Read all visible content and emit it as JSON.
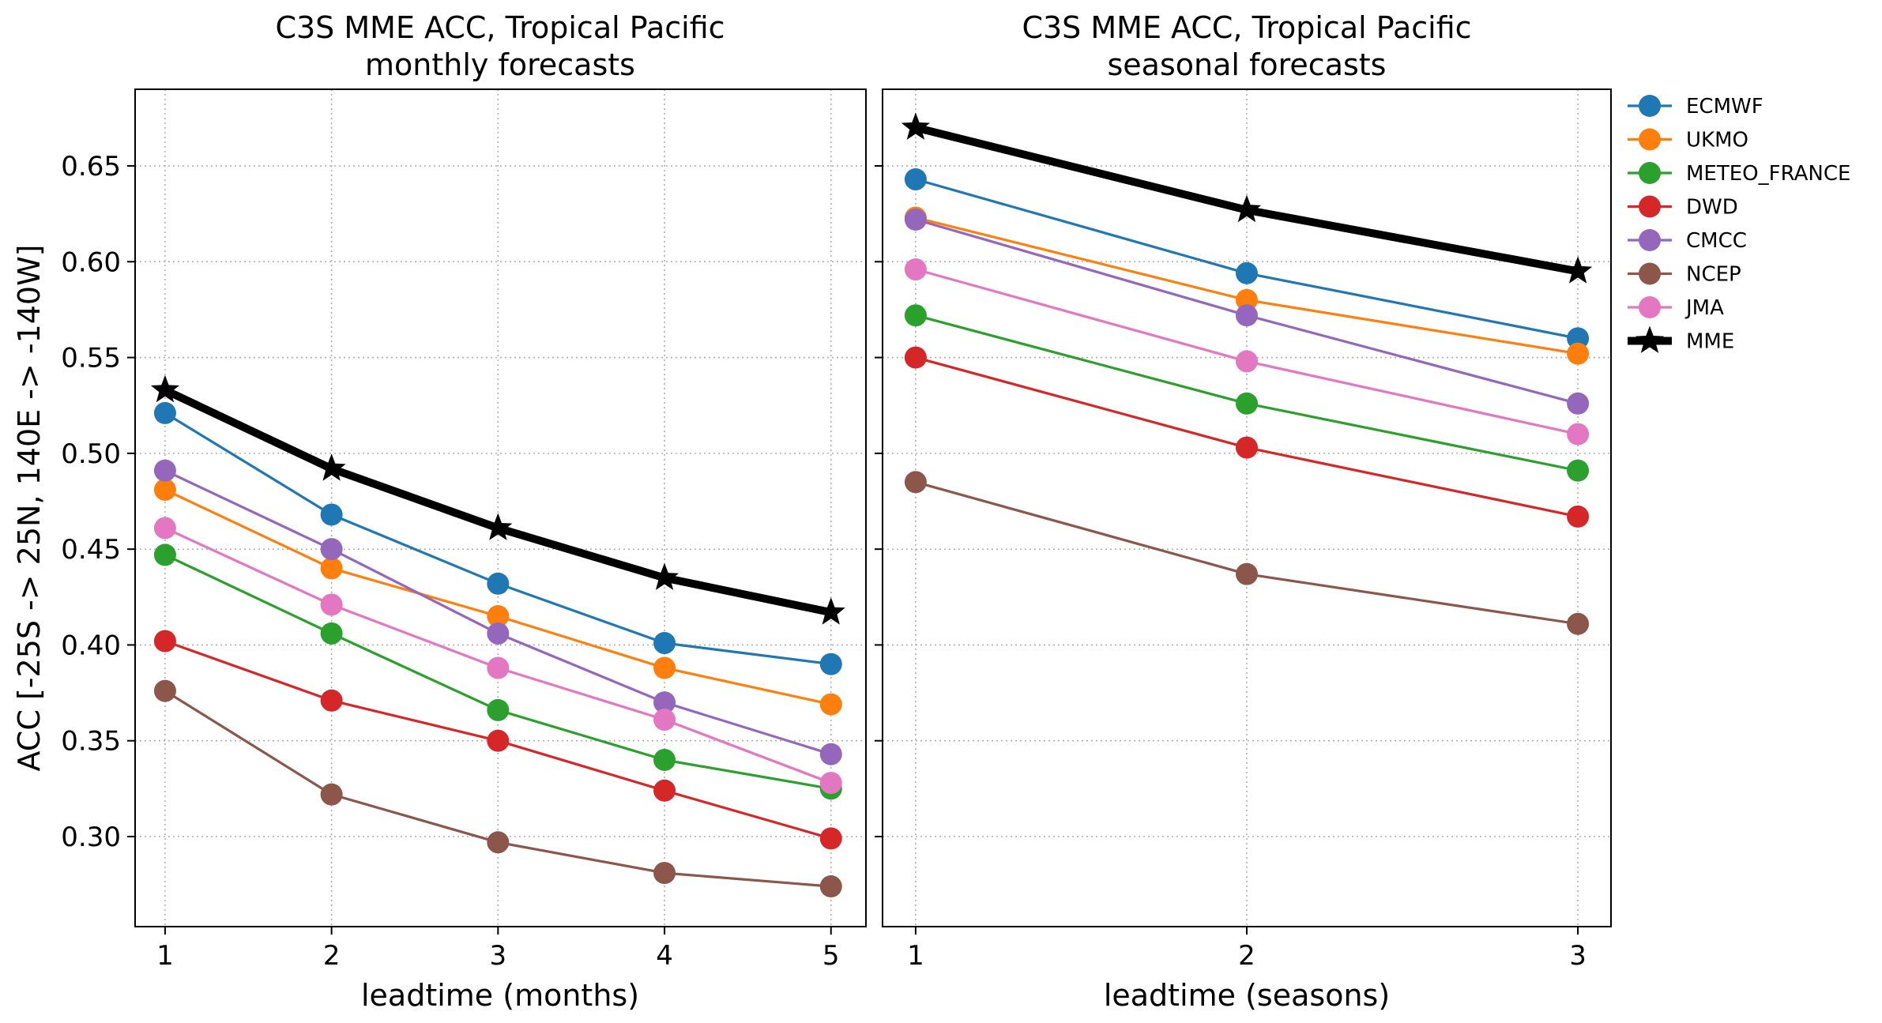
{
  "chart_data": [
    {
      "type": "line",
      "title": "C3S MME ACC, Tropical Pacific",
      "subtitle": "monthly forecasts",
      "xlabel": "leadtime (months)",
      "ylabel": "ACC [-25S -> 25N, 140E -> -140W]",
      "x": [
        1,
        2,
        3,
        4,
        5
      ],
      "xticks": [
        "1",
        "2",
        "3",
        "4",
        "5"
      ],
      "xlim": [
        0.82,
        5.21
      ],
      "ylim": [
        0.253,
        0.69
      ],
      "yticks": [
        "0.30",
        "0.35",
        "0.40",
        "0.45",
        "0.50",
        "0.55",
        "0.60",
        "0.65"
      ],
      "grid": true,
      "series": [
        {
          "name": "ECMWF",
          "color": "#1f77b4",
          "marker": "circle",
          "values": [
            0.521,
            0.468,
            0.432,
            0.401,
            0.39
          ]
        },
        {
          "name": "UKMO",
          "color": "#ff7f0e",
          "marker": "circle",
          "values": [
            0.481,
            0.44,
            0.415,
            0.388,
            0.369
          ]
        },
        {
          "name": "METEO_FRANCE",
          "color": "#2ca02c",
          "marker": "circle",
          "values": [
            0.447,
            0.406,
            0.366,
            0.34,
            0.325
          ]
        },
        {
          "name": "DWD",
          "color": "#d62728",
          "marker": "circle",
          "values": [
            0.402,
            0.371,
            0.35,
            0.324,
            0.299
          ]
        },
        {
          "name": "CMCC",
          "color": "#9467bd",
          "marker": "circle",
          "values": [
            0.491,
            0.45,
            0.406,
            0.37,
            0.343
          ]
        },
        {
          "name": "NCEP",
          "color": "#8c564b",
          "marker": "circle",
          "values": [
            0.376,
            0.322,
            0.297,
            0.281,
            0.274
          ]
        },
        {
          "name": "JMA",
          "color": "#e377c2",
          "marker": "circle",
          "values": [
            0.461,
            0.421,
            0.388,
            0.361,
            0.328
          ]
        },
        {
          "name": "MME",
          "color": "#000000",
          "marker": "star",
          "values": [
            0.533,
            0.492,
            0.461,
            0.435,
            0.417
          ]
        }
      ]
    },
    {
      "type": "line",
      "title": "C3S MME ACC, Tropical Pacific",
      "subtitle": "seasonal forecasts",
      "xlabel": "leadtime (seasons)",
      "ylabel": "",
      "x": [
        1,
        2,
        3
      ],
      "xticks": [
        "1",
        "2",
        "3"
      ],
      "xlim": [
        0.9,
        3.1
      ],
      "ylim": [
        0.253,
        0.69
      ],
      "grid": true,
      "legend": "outside-right",
      "series": [
        {
          "name": "ECMWF",
          "color": "#1f77b4",
          "marker": "circle",
          "values": [
            0.643,
            0.594,
            0.56
          ]
        },
        {
          "name": "UKMO",
          "color": "#ff7f0e",
          "marker": "circle",
          "values": [
            0.623,
            0.58,
            0.552
          ]
        },
        {
          "name": "METEO_FRANCE",
          "color": "#2ca02c",
          "marker": "circle",
          "values": [
            0.572,
            0.526,
            0.491
          ]
        },
        {
          "name": "DWD",
          "color": "#d62728",
          "marker": "circle",
          "values": [
            0.55,
            0.503,
            0.467
          ]
        },
        {
          "name": "CMCC",
          "color": "#9467bd",
          "marker": "circle",
          "values": [
            0.622,
            0.572,
            0.526
          ]
        },
        {
          "name": "NCEP",
          "color": "#8c564b",
          "marker": "circle",
          "values": [
            0.485,
            0.437,
            0.411
          ]
        },
        {
          "name": "JMA",
          "color": "#e377c2",
          "marker": "circle",
          "values": [
            0.596,
            0.548,
            0.51
          ]
        },
        {
          "name": "MME",
          "color": "#000000",
          "marker": "star",
          "values": [
            0.67,
            0.627,
            0.595
          ]
        }
      ]
    }
  ]
}
